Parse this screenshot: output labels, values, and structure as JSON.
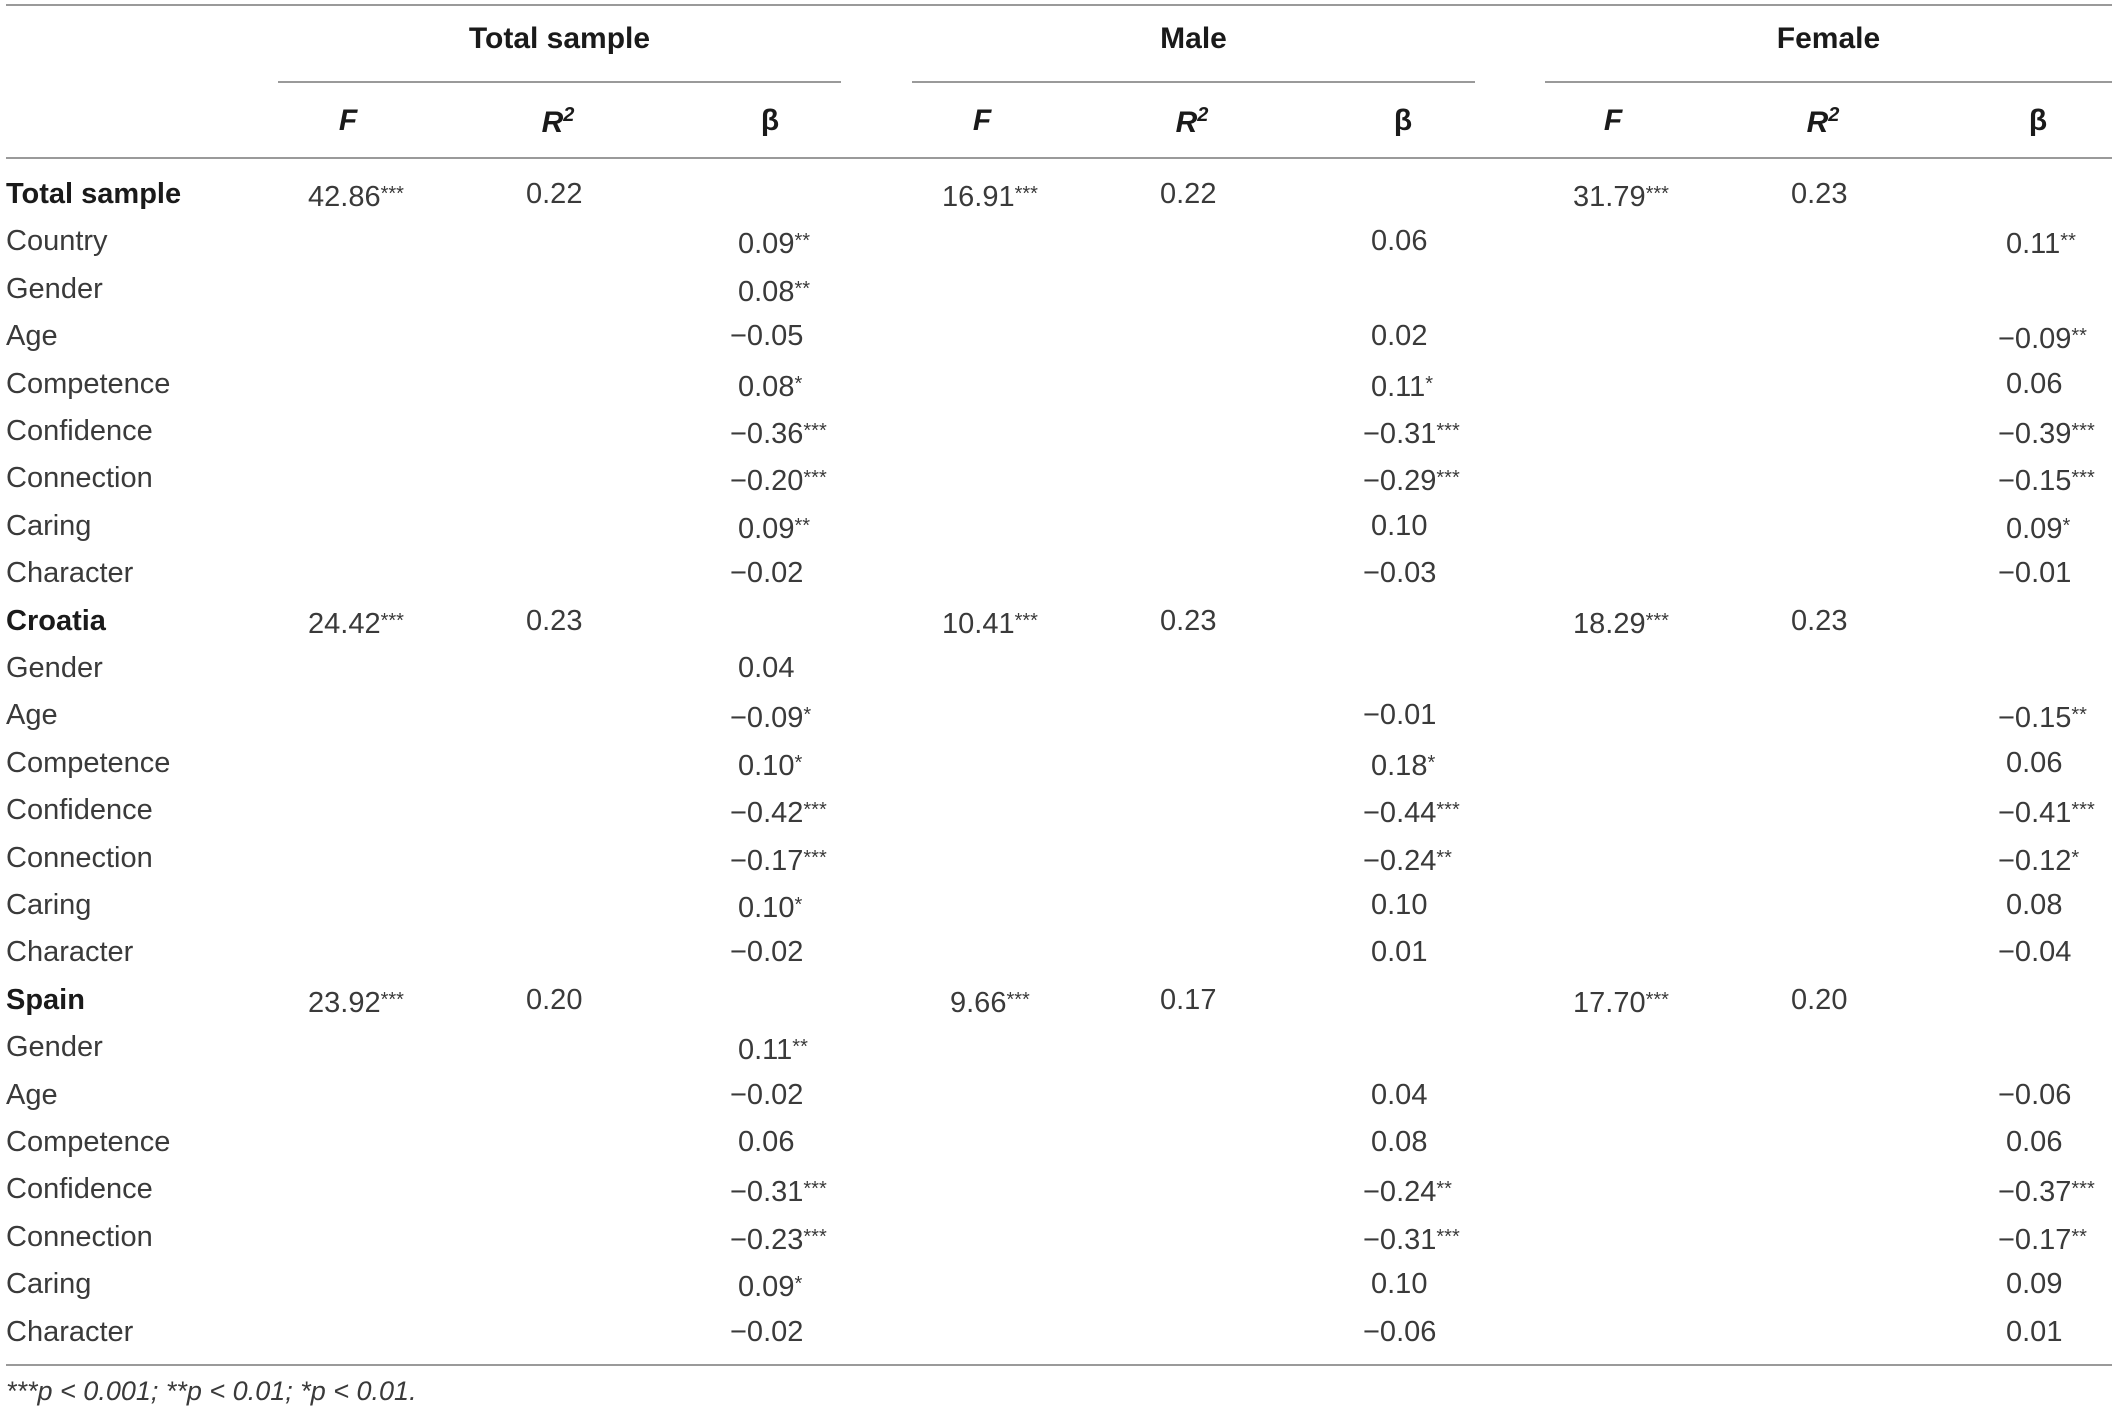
{
  "column_groups": [
    "Total sample",
    "Male",
    "Female"
  ],
  "sub_columns": [
    {
      "label": "F",
      "sup": ""
    },
    {
      "label": "R",
      "sup": "2"
    },
    {
      "label": "β",
      "sup": ""
    }
  ],
  "rows": [
    {
      "label": "Total sample",
      "group": true,
      "cells": [
        "42.86***",
        "0.22",
        "",
        "16.91***",
        "0.22",
        "",
        "31.79***",
        "0.23",
        ""
      ]
    },
    {
      "label": "Country",
      "group": false,
      "cells": [
        "",
        "",
        "0.09**",
        "",
        "",
        "0.06",
        "",
        "",
        "0.11**"
      ]
    },
    {
      "label": "Gender",
      "group": false,
      "cells": [
        "",
        "",
        "0.08**",
        "",
        "",
        "",
        "",
        "",
        ""
      ]
    },
    {
      "label": "Age",
      "group": false,
      "cells": [
        "",
        "",
        "−0.05",
        "",
        "",
        "0.02",
        "",
        "",
        "−0.09**"
      ]
    },
    {
      "label": "Competence",
      "group": false,
      "cells": [
        "",
        "",
        "0.08*",
        "",
        "",
        "0.11*",
        "",
        "",
        "0.06"
      ]
    },
    {
      "label": "Confidence",
      "group": false,
      "cells": [
        "",
        "",
        "−0.36***",
        "",
        "",
        "−0.31***",
        "",
        "",
        "−0.39***"
      ]
    },
    {
      "label": "Connection",
      "group": false,
      "cells": [
        "",
        "",
        "−0.20***",
        "",
        "",
        "−0.29***",
        "",
        "",
        "−0.15***"
      ]
    },
    {
      "label": "Caring",
      "group": false,
      "cells": [
        "",
        "",
        "0.09**",
        "",
        "",
        "0.10",
        "",
        "",
        "0.09*"
      ]
    },
    {
      "label": "Character",
      "group": false,
      "cells": [
        "",
        "",
        "−0.02",
        "",
        "",
        "−0.03",
        "",
        "",
        "−0.01"
      ]
    },
    {
      "label": "Croatia",
      "group": true,
      "cells": [
        "24.42***",
        "0.23",
        "",
        "10.41***",
        "0.23",
        "",
        "18.29***",
        "0.23",
        ""
      ]
    },
    {
      "label": "Gender",
      "group": false,
      "cells": [
        "",
        "",
        "0.04",
        "",
        "",
        "",
        "",
        "",
        ""
      ]
    },
    {
      "label": "Age",
      "group": false,
      "cells": [
        "",
        "",
        "−0.09*",
        "",
        "",
        "−0.01",
        "",
        "",
        "−0.15**"
      ]
    },
    {
      "label": "Competence",
      "group": false,
      "cells": [
        "",
        "",
        "0.10*",
        "",
        "",
        "0.18*",
        "",
        "",
        "0.06"
      ]
    },
    {
      "label": "Confidence",
      "group": false,
      "cells": [
        "",
        "",
        "−0.42***",
        "",
        "",
        "−0.44***",
        "",
        "",
        "−0.41***"
      ]
    },
    {
      "label": "Connection",
      "group": false,
      "cells": [
        "",
        "",
        "−0.17***",
        "",
        "",
        "−0.24**",
        "",
        "",
        "−0.12*"
      ]
    },
    {
      "label": "Caring",
      "group": false,
      "cells": [
        "",
        "",
        "0.10*",
        "",
        "",
        "0.10",
        "",
        "",
        "0.08"
      ]
    },
    {
      "label": "Character",
      "group": false,
      "cells": [
        "",
        "",
        "−0.02",
        "",
        "",
        "0.01",
        "",
        "",
        "−0.04"
      ]
    },
    {
      "label": "Spain",
      "group": true,
      "cells": [
        "23.92***",
        "0.20",
        "",
        "9.66***",
        "0.17",
        "",
        "17.70***",
        "0.20",
        ""
      ]
    },
    {
      "label": "Gender",
      "group": false,
      "cells": [
        "",
        "",
        "0.11**",
        "",
        "",
        "",
        "",
        "",
        ""
      ]
    },
    {
      "label": "Age",
      "group": false,
      "cells": [
        "",
        "",
        "−0.02",
        "",
        "",
        "0.04",
        "",
        "",
        "−0.06"
      ]
    },
    {
      "label": "Competence",
      "group": false,
      "cells": [
        "",
        "",
        "0.06",
        "",
        "",
        "0.08",
        "",
        "",
        "0.06"
      ]
    },
    {
      "label": "Confidence",
      "group": false,
      "cells": [
        "",
        "",
        "−0.31***",
        "",
        "",
        "−0.24**",
        "",
        "",
        "−0.37***"
      ]
    },
    {
      "label": "Connection",
      "group": false,
      "cells": [
        "",
        "",
        "−0.23***",
        "",
        "",
        "−0.31***",
        "",
        "",
        "−0.17**"
      ]
    },
    {
      "label": "Caring",
      "group": false,
      "cells": [
        "",
        "",
        "0.09*",
        "",
        "",
        "0.10",
        "",
        "",
        "0.09"
      ]
    },
    {
      "label": "Character",
      "group": false,
      "cells": [
        "",
        "",
        "−0.02",
        "",
        "",
        "−0.06",
        "",
        "",
        "0.01"
      ]
    }
  ],
  "footnote": "***p < 0.001; **p < 0.01; *p < 0.01."
}
